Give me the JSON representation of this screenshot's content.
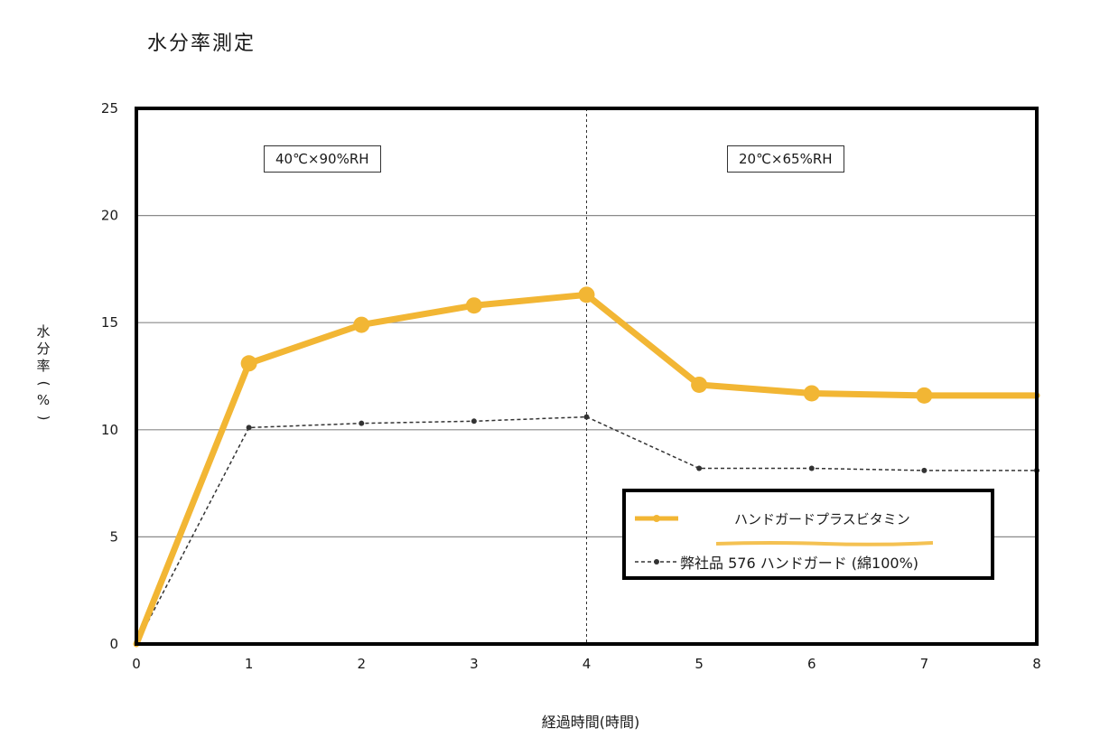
{
  "title": "水分率測定",
  "chart_data": {
    "type": "line",
    "xlabel": "経過時間(時間)",
    "ylabel_chars": [
      "水",
      "分",
      "率",
      "(",
      "%",
      ")"
    ],
    "x": [
      0,
      1,
      2,
      3,
      4,
      5,
      6,
      7,
      8
    ],
    "xlim": [
      0,
      8
    ],
    "ylim": [
      0,
      25
    ],
    "x_ticks": [
      "0",
      "1",
      "2",
      "3",
      "4",
      "5",
      "6",
      "7",
      "8"
    ],
    "y_ticks": [
      "0",
      "5",
      "10",
      "15",
      "20",
      "25"
    ],
    "grid": true,
    "divider_x": 4,
    "conditions": [
      "40℃×90%RH",
      "20℃×65%RH"
    ],
    "series": [
      {
        "name": "ハンドガードプラスビタミン",
        "color": "#F2B634",
        "style": "solid-thick-marker",
        "values": [
          0,
          13.1,
          14.9,
          15.8,
          16.3,
          12.1,
          11.7,
          11.6,
          11.6
        ]
      },
      {
        "name": "弊社品  576 ハンドガード (綿100%)",
        "color": "#333333",
        "style": "dashed-dot",
        "values": [
          0,
          10.1,
          10.3,
          10.4,
          10.6,
          8.2,
          8.2,
          8.1,
          8.1
        ]
      }
    ],
    "legend_position": "bottom-right"
  }
}
